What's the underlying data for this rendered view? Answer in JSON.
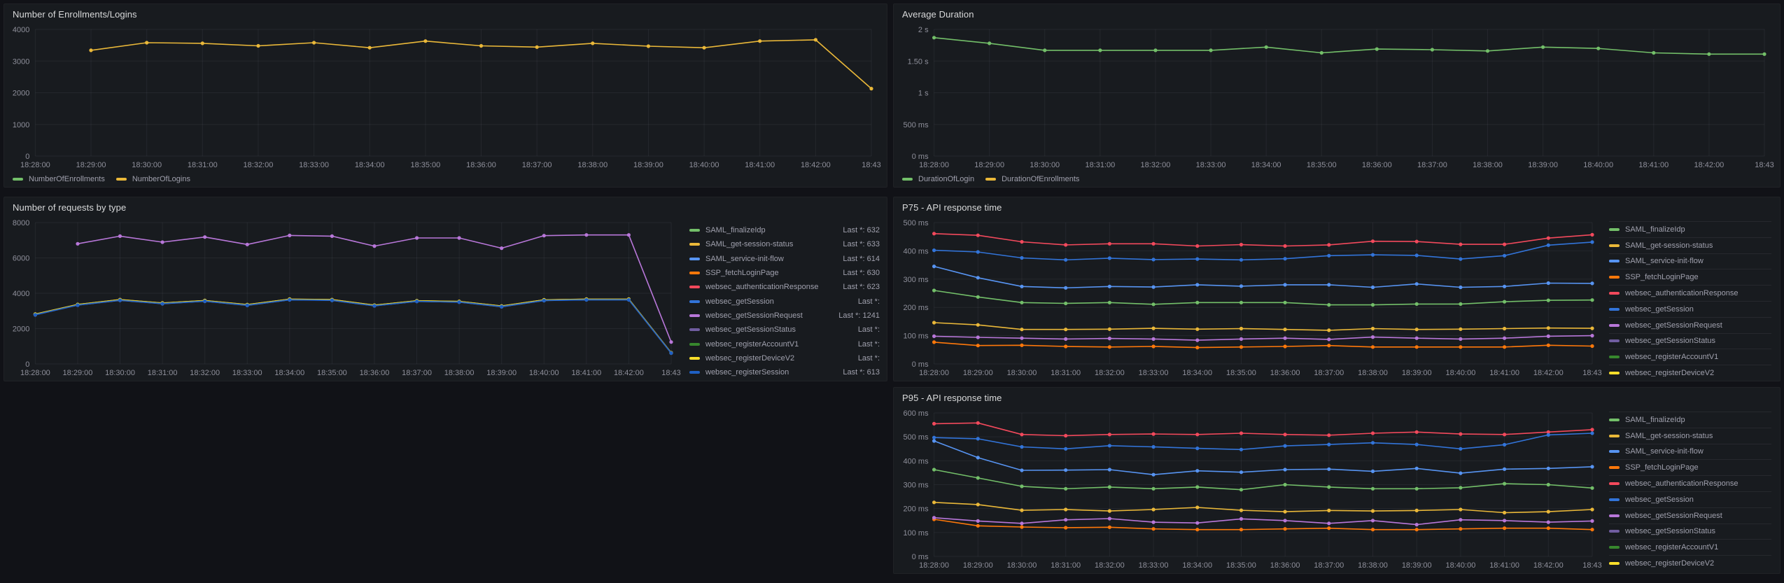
{
  "chart_data": [
    {
      "type": "line",
      "title": "Number of Enrollments/Logins",
      "x": [
        "18:28:00",
        "18:29:00",
        "18:30:00",
        "18:31:00",
        "18:32:00",
        "18:33:00",
        "18:34:00",
        "18:35:00",
        "18:36:00",
        "18:37:00",
        "18:38:00",
        "18:39:00",
        "18:40:00",
        "18:41:00",
        "18:42:00",
        "18:43"
      ],
      "ylim": [
        0,
        4000
      ],
      "y_ticks": [
        {
          "v": 0,
          "label": "0"
        },
        {
          "v": 1000,
          "label": "1000"
        },
        {
          "v": 2000,
          "label": "2000"
        },
        {
          "v": 3000,
          "label": "3000"
        },
        {
          "v": 4000,
          "label": "4000"
        }
      ],
      "grid": true,
      "legend_position": "bottom",
      "series": [
        {
          "name": "NumberOfEnrollments",
          "color": "#73BF69",
          "values": []
        },
        {
          "name": "NumberOfLogins",
          "color": "#EAB839",
          "values": [
            null,
            3340,
            3580,
            3560,
            3480,
            3580,
            3420,
            3630,
            3480,
            3440,
            3560,
            3470,
            3420,
            3630,
            3670,
            2130
          ]
        }
      ]
    },
    {
      "type": "line",
      "title": "Average Duration",
      "x": [
        "18:28:00",
        "18:29:00",
        "18:30:00",
        "18:31:00",
        "18:32:00",
        "18:33:00",
        "18:34:00",
        "18:35:00",
        "18:36:00",
        "18:37:00",
        "18:38:00",
        "18:39:00",
        "18:40:00",
        "18:41:00",
        "18:42:00",
        "18:43"
      ],
      "ylim": [
        0,
        2
      ],
      "y_ticks": [
        {
          "v": 0,
          "label": "0 ms"
        },
        {
          "v": 0.5,
          "label": "500 ms"
        },
        {
          "v": 1,
          "label": "1 s"
        },
        {
          "v": 1.5,
          "label": "1.50 s"
        },
        {
          "v": 2,
          "label": "2 s"
        }
      ],
      "grid": true,
      "legend_position": "bottom",
      "series": [
        {
          "name": "DurationOfLogin",
          "color": "#73BF69",
          "values": [
            1.87,
            1.78,
            1.67,
            1.67,
            1.67,
            1.67,
            1.72,
            1.63,
            1.69,
            1.68,
            1.66,
            1.72,
            1.7,
            1.63,
            1.61,
            1.61
          ]
        },
        {
          "name": "DurationOfEnrollments",
          "color": "#EAB839",
          "values": []
        }
      ]
    },
    {
      "type": "line",
      "title": "Number of requests by type",
      "x": [
        "18:28:00",
        "18:29:00",
        "18:30:00",
        "18:31:00",
        "18:32:00",
        "18:33:00",
        "18:34:00",
        "18:35:00",
        "18:36:00",
        "18:37:00",
        "18:38:00",
        "18:39:00",
        "18:40:00",
        "18:41:00",
        "18:42:00",
        "18:43"
      ],
      "ylim": [
        0,
        8000
      ],
      "y_ticks": [
        {
          "v": 0,
          "label": "0"
        },
        {
          "v": 2000,
          "label": "2000"
        },
        {
          "v": 4000,
          "label": "4000"
        },
        {
          "v": 6000,
          "label": "6000"
        },
        {
          "v": 8000,
          "label": "8000"
        }
      ],
      "grid": true,
      "legend_position": "right",
      "series": [
        {
          "name": "SAML_finalizeIdp",
          "color": "#73BF69",
          "last_label": "Last *: 632",
          "values": [
            2800,
            3350,
            3620,
            3430,
            3570,
            3340,
            3650,
            3620,
            3310,
            3560,
            3520,
            3260,
            3610,
            3650,
            3650,
            632
          ]
        },
        {
          "name": "SAML_get-session-status",
          "color": "#EAB839",
          "last_label": "Last *: 633",
          "values": [
            2820,
            3368,
            3638,
            3448,
            3588,
            3358,
            3668,
            3638,
            3328,
            3578,
            3538,
            3278,
            3628,
            3668,
            3668,
            633
          ]
        },
        {
          "name": "SAML_service-init-flow",
          "color": "#5794F2",
          "last_label": "Last *: 614",
          "values": [
            2778,
            3326,
            3596,
            3406,
            3546,
            3316,
            3626,
            3596,
            3286,
            3536,
            3496,
            3236,
            3586,
            3626,
            3626,
            614
          ]
        },
        {
          "name": "SSP_fetchLoginPage",
          "color": "#FF780A",
          "last_label": "Last *: 630",
          "values": [
            2792,
            3342,
            3612,
            3422,
            3562,
            3332,
            3642,
            3612,
            3302,
            3552,
            3512,
            3252,
            3602,
            3642,
            3642,
            630
          ]
        },
        {
          "name": "websec_authenticationResponse",
          "color": "#F2495C",
          "last_label": "Last *: 623",
          "values": [
            2808,
            3358,
            3628,
            3438,
            3578,
            3348,
            3658,
            3628,
            3318,
            3568,
            3528,
            3268,
            3618,
            3658,
            3658,
            623
          ]
        },
        {
          "name": "websec_getSession",
          "color": "#3274D9",
          "last_label": "Last *:",
          "values": [
            2800,
            3352,
            3622,
            3432,
            3572,
            3342,
            3652,
            3622,
            3312,
            3562,
            3522,
            3262,
            3612,
            3652,
            3652,
            621
          ]
        },
        {
          "name": "websec_getSessionRequest",
          "color": "#B877D9",
          "last_label": "Last *: 1241",
          "values": [
            null,
            6800,
            7230,
            6890,
            7180,
            6760,
            7270,
            7230,
            6670,
            7130,
            7130,
            6550,
            7260,
            7300,
            7300,
            1241
          ]
        },
        {
          "name": "websec_getSessionStatus",
          "color": "#705DA0",
          "last_label": "Last *:",
          "values": [
            2796,
            3346,
            3616,
            3426,
            3566,
            3336,
            3646,
            3616,
            3306,
            3556,
            3516,
            3256,
            3606,
            3646,
            3646,
            618
          ]
        },
        {
          "name": "websec_registerAccountV1",
          "color": "#37872D",
          "last_label": "Last *:",
          "values": [
            2812,
            3362,
            3632,
            3442,
            3582,
            3352,
            3662,
            3632,
            3322,
            3572,
            3532,
            3272,
            3622,
            3662,
            3662,
            626
          ]
        },
        {
          "name": "websec_registerDeviceV2",
          "color": "#FADE2A",
          "last_label": "Last *:",
          "values": [
            2816,
            3364,
            3634,
            3444,
            3584,
            3354,
            3664,
            3634,
            3324,
            3574,
            3534,
            3274,
            3624,
            3664,
            3664,
            628
          ]
        },
        {
          "name": "websec_registerSession",
          "color": "#1F60C4",
          "last_label": "Last *: 613",
          "values": [
            2784,
            3332,
            3602,
            3412,
            3552,
            3322,
            3632,
            3602,
            3292,
            3542,
            3502,
            3242,
            3592,
            3632,
            3632,
            613
          ]
        }
      ]
    },
    {
      "type": "line",
      "title": "P75 - API response time",
      "x": [
        "18:28:00",
        "18:29:00",
        "18:30:00",
        "18:31:00",
        "18:32:00",
        "18:33:00",
        "18:34:00",
        "18:35:00",
        "18:36:00",
        "18:37:00",
        "18:38:00",
        "18:39:00",
        "18:40:00",
        "18:41:00",
        "18:42:00",
        "18:43"
      ],
      "ylim": [
        0,
        500
      ],
      "y_ticks": [
        {
          "v": 0,
          "label": "0 ms"
        },
        {
          "v": 100,
          "label": "100 ms"
        },
        {
          "v": 200,
          "label": "200 ms"
        },
        {
          "v": 300,
          "label": "300 ms"
        },
        {
          "v": 400,
          "label": "400 ms"
        },
        {
          "v": 500,
          "label": "500 ms"
        }
      ],
      "grid": true,
      "legend_position": "right",
      "series": [
        {
          "name": "SAML_finalizeIdp",
          "color": "#73BF69",
          "values": [
            260,
            237,
            217,
            214,
            217,
            211,
            217,
            217,
            217,
            209,
            209,
            212,
            212,
            220,
            225,
            226
          ]
        },
        {
          "name": "SAML_get-session-status",
          "color": "#EAB839",
          "values": [
            146,
            138,
            122,
            122,
            123,
            126,
            123,
            125,
            122,
            119,
            125,
            122,
            123,
            125,
            127,
            126
          ]
        },
        {
          "name": "SAML_service-init-flow",
          "color": "#5794F2",
          "values": [
            345,
            305,
            274,
            269,
            274,
            272,
            280,
            275,
            280,
            280,
            271,
            283,
            271,
            274,
            286,
            285
          ]
        },
        {
          "name": "SSP_fetchLoginPage",
          "color": "#FF780A",
          "values": [
            77,
            65,
            66,
            62,
            60,
            62,
            58,
            60,
            62,
            65,
            60,
            60,
            60,
            60,
            66,
            63
          ]
        },
        {
          "name": "websec_authenticationResponse",
          "color": "#F2495C",
          "values": [
            461,
            455,
            432,
            421,
            425,
            425,
            417,
            422,
            417,
            421,
            434,
            433,
            423,
            423,
            445,
            457
          ]
        },
        {
          "name": "websec_getSession",
          "color": "#3274D9",
          "values": [
            402,
            396,
            375,
            368,
            374,
            369,
            371,
            368,
            372,
            383,
            386,
            384,
            371,
            383,
            420,
            431
          ]
        },
        {
          "name": "websec_getSessionRequest",
          "color": "#B877D9",
          "values": [
            98,
            94,
            91,
            88,
            90,
            88,
            84,
            88,
            91,
            87,
            95,
            91,
            88,
            91,
            98,
            100
          ]
        },
        {
          "name": "websec_getSessionStatus",
          "color": "#705DA0",
          "values": []
        },
        {
          "name": "websec_registerAccountV1",
          "color": "#37872D",
          "values": []
        },
        {
          "name": "websec_registerDeviceV2",
          "color": "#FADE2A",
          "values": []
        },
        {
          "name": "websec_registerSession",
          "color": "#1F60C4",
          "values": []
        }
      ]
    },
    {
      "type": "line",
      "title": "P95 - API response time",
      "x": [
        "18:28:00",
        "18:29:00",
        "18:30:00",
        "18:31:00",
        "18:32:00",
        "18:33:00",
        "18:34:00",
        "18:35:00",
        "18:36:00",
        "18:37:00",
        "18:38:00",
        "18:39:00",
        "18:40:00",
        "18:41:00",
        "18:42:00",
        "18:43"
      ],
      "ylim": [
        0,
        600
      ],
      "y_ticks": [
        {
          "v": 0,
          "label": "0 ms"
        },
        {
          "v": 100,
          "label": "100 ms"
        },
        {
          "v": 200,
          "label": "200 ms"
        },
        {
          "v": 300,
          "label": "300 ms"
        },
        {
          "v": 400,
          "label": "400 ms"
        },
        {
          "v": 500,
          "label": "500 ms"
        },
        {
          "v": 600,
          "label": "600 ms"
        }
      ],
      "grid": true,
      "legend_position": "right",
      "series": [
        {
          "name": "SAML_finalizeIdp",
          "color": "#73BF69",
          "values": [
            363,
            328,
            293,
            283,
            290,
            283,
            290,
            279,
            300,
            290,
            283,
            283,
            287,
            304,
            300,
            286
          ]
        },
        {
          "name": "SAML_get-session-status",
          "color": "#EAB839",
          "values": [
            226,
            217,
            193,
            196,
            190,
            196,
            205,
            193,
            187,
            192,
            190,
            192,
            196,
            183,
            187,
            196
          ]
        },
        {
          "name": "SAML_service-init-flow",
          "color": "#5794F2",
          "values": [
            483,
            413,
            360,
            361,
            363,
            342,
            358,
            352,
            363,
            365,
            356,
            368,
            348,
            365,
            368,
            375
          ]
        },
        {
          "name": "SSP_fetchLoginPage",
          "color": "#FF780A",
          "values": [
            155,
            128,
            123,
            120,
            122,
            115,
            112,
            112,
            115,
            118,
            112,
            112,
            115,
            118,
            118,
            112
          ]
        },
        {
          "name": "websec_authenticationResponse",
          "color": "#F2495C",
          "values": [
            555,
            558,
            510,
            505,
            510,
            512,
            510,
            515,
            510,
            507,
            515,
            520,
            512,
            510,
            520,
            530
          ]
        },
        {
          "name": "websec_getSession",
          "color": "#3274D9",
          "values": [
            497,
            492,
            458,
            450,
            463,
            458,
            452,
            447,
            462,
            468,
            475,
            468,
            450,
            467,
            508,
            515
          ]
        },
        {
          "name": "websec_getSessionRequest",
          "color": "#B877D9",
          "values": [
            162,
            148,
            138,
            153,
            158,
            143,
            140,
            157,
            150,
            138,
            150,
            133,
            153,
            150,
            143,
            148
          ]
        },
        {
          "name": "websec_getSessionStatus",
          "color": "#705DA0",
          "values": []
        },
        {
          "name": "websec_registerAccountV1",
          "color": "#37872D",
          "values": []
        },
        {
          "name": "websec_registerDeviceV2",
          "color": "#FADE2A",
          "values": []
        },
        {
          "name": "websec_registerSession",
          "color": "#1F60C4",
          "values": []
        }
      ]
    }
  ],
  "theme": {
    "page_bg": "#111217",
    "panel_bg": "#181B1F",
    "panel_border": "#202226",
    "grid_color": "rgba(204,204,220,0.07)",
    "axis_text": "rgba(204,204,220,0.65)",
    "title_text": "#D8D9DA"
  }
}
